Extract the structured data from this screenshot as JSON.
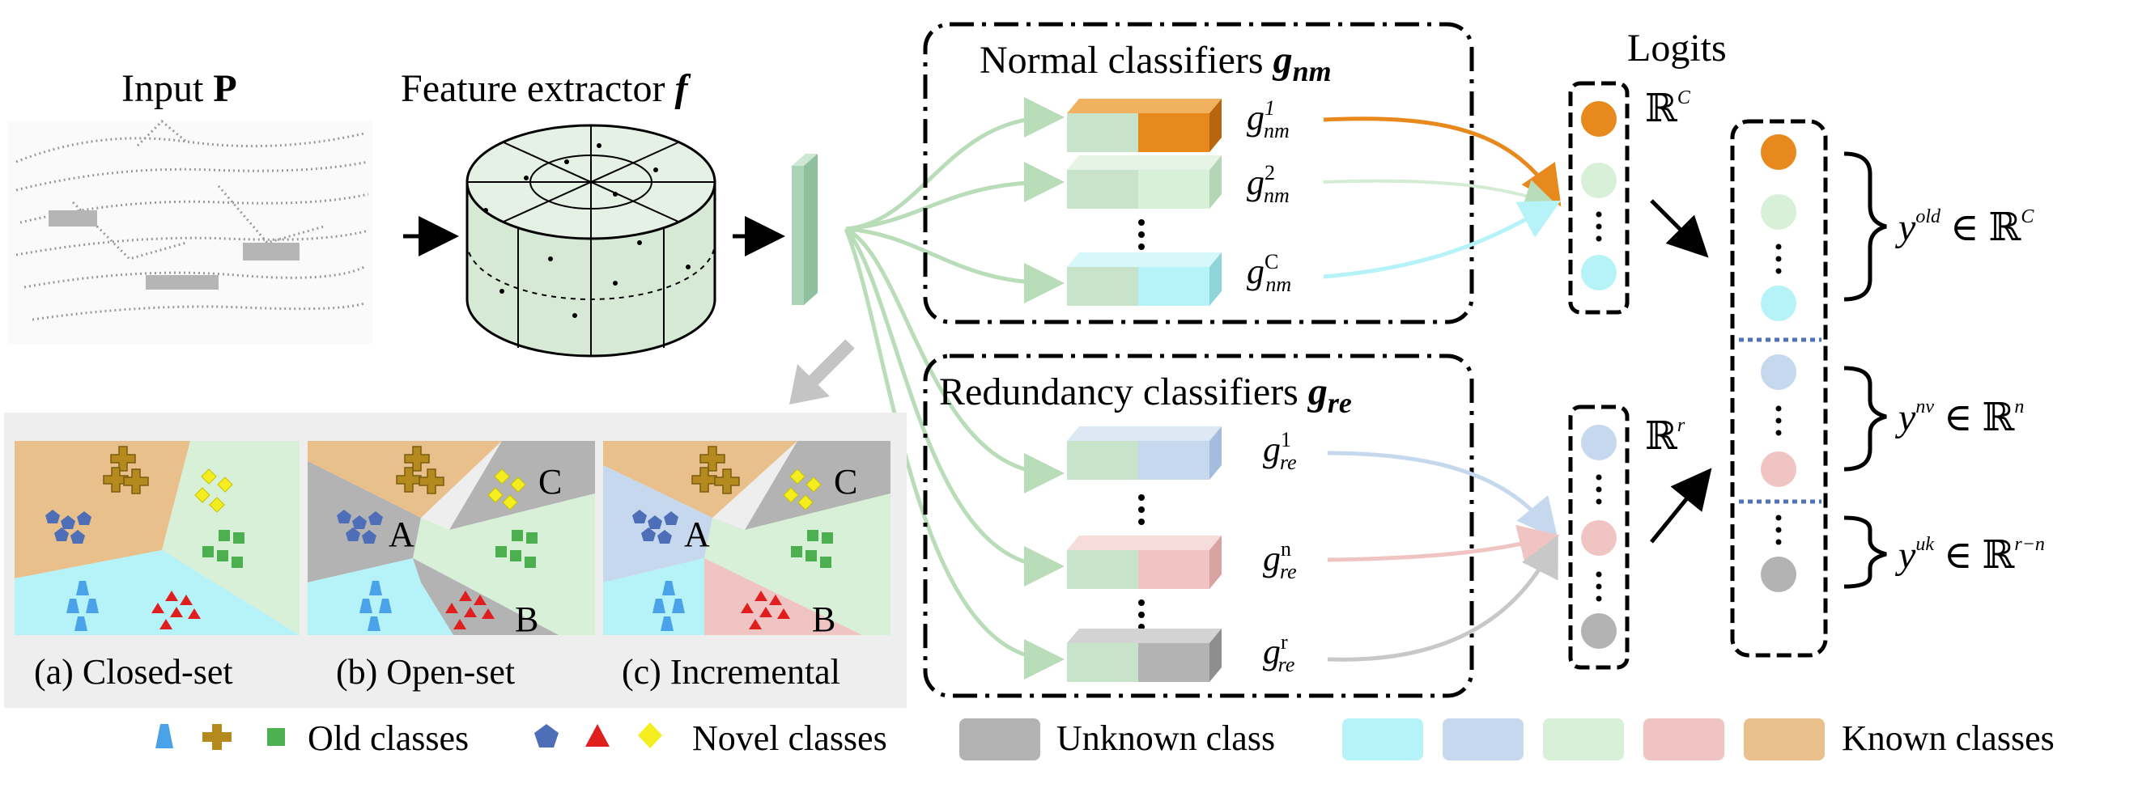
{
  "input": {
    "label": "Input",
    "symbol": "P"
  },
  "extractor": {
    "label": "Feature extractor",
    "symbol": "f"
  },
  "normal": {
    "title": "Normal classifiers",
    "symbol": "g",
    "subscript": "nm",
    "heads": [
      {
        "sup": "1",
        "sub": "nm"
      },
      {
        "sup": "2",
        "sub": "nm"
      },
      {
        "sup": "C",
        "sub": "nm"
      }
    ]
  },
  "redundancy": {
    "title": "Redundancy classifiers",
    "symbol": "g",
    "subscript": "re",
    "heads": [
      {
        "sup": "1",
        "sub": "re"
      },
      {
        "sup": "n",
        "sub": "re"
      },
      {
        "sup": "r",
        "sub": "re"
      }
    ]
  },
  "logits": {
    "title": "Logits",
    "space_normal": {
      "base": "ℝ",
      "sup": "C"
    },
    "space_redundancy": {
      "base": "ℝ",
      "sup": "r"
    }
  },
  "outputs": [
    {
      "var": "y",
      "sup": "old",
      "rel": "∈ ℝ",
      "space_sup": "C"
    },
    {
      "var": "y",
      "sup": "nv",
      "rel": "∈ ℝ",
      "space_sup": "n"
    },
    {
      "var": "y",
      "sup": "uk",
      "rel": "∈ ℝ",
      "space_sup": "r−n"
    }
  ],
  "panels": [
    {
      "caption": "(a) Closed-set",
      "regions": []
    },
    {
      "caption": "(b) Open-set",
      "regions": [
        "A",
        "B",
        "C"
      ]
    },
    {
      "caption": "(c) Incremental",
      "regions": [
        "A",
        "B",
        "C"
      ]
    }
  ],
  "legend": {
    "old_classes": "Old classes",
    "novel_classes": "Novel classes",
    "unknown_class": "Unknown class",
    "known_classes": "Known classes"
  },
  "colors": {
    "orange": "#e8891d",
    "light_green": "#d8efd8",
    "cyan": "#b6f3f8",
    "blue": "#c6d8ee",
    "pink": "#efc4c2",
    "gray": "#b3b3b3",
    "tan": "#e9c08c",
    "feature_green": "#a9d3b5",
    "box_green": "#c7e3ca"
  },
  "icons": [
    "scan-pointcloud-icon",
    "cylinder-voxel-icon",
    "cone-icon",
    "cross-icon",
    "square-icon",
    "pentagon-icon",
    "triangle-icon",
    "diamond-icon"
  ]
}
